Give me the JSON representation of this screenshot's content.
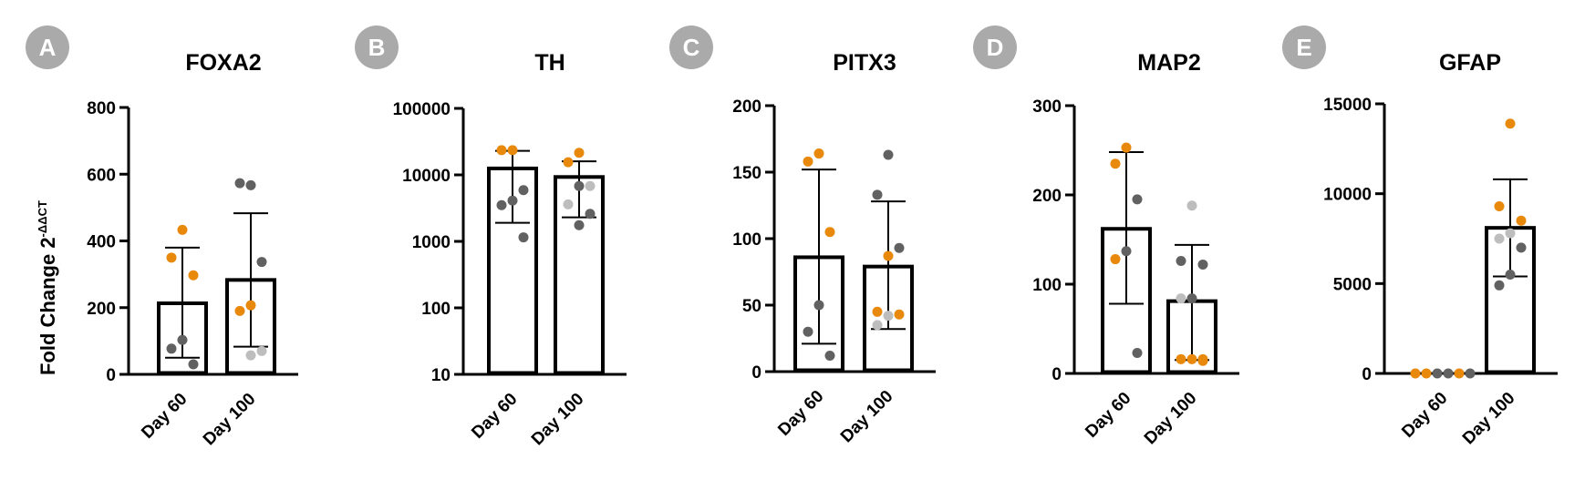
{
  "figure": {
    "ylabel": "Fold Change 2",
    "ylabel_sup": "-ΔΔCT"
  },
  "colors": {
    "bar": "#000000",
    "badge": "#aaaaaa",
    "dot_orange": "#e8890c",
    "dot_dark": "#616161",
    "dot_light": "#bdbdbd"
  },
  "chart_data": [
    {
      "panel": "A",
      "title": "FOXA2",
      "type": "bar",
      "scale": "linear",
      "ylim": [
        0,
        800
      ],
      "yticks": [
        0,
        200,
        400,
        600,
        800
      ],
      "ytick_labels": [
        "0",
        "200",
        "400",
        "600",
        "800"
      ],
      "categories": [
        "Day 60",
        "Day 100"
      ],
      "values": [
        213,
        283
      ],
      "error": [
        [
          50,
          380
        ],
        [
          83,
          483
        ]
      ],
      "points": [
        [
          {
            "y": 433,
            "c": "orange"
          },
          {
            "y": 350,
            "c": "orange"
          },
          {
            "y": 297,
            "c": "orange"
          },
          {
            "y": 103,
            "c": "dark"
          },
          {
            "y": 77,
            "c": "dark"
          },
          {
            "y": 30,
            "c": "dark"
          }
        ],
        [
          {
            "y": 567,
            "c": "dark"
          },
          {
            "y": 573,
            "c": "dark"
          },
          {
            "y": 337,
            "c": "dark"
          },
          {
            "y": 207,
            "c": "orange"
          },
          {
            "y": 190,
            "c": "orange"
          },
          {
            "y": 70,
            "c": "light"
          },
          {
            "y": 57,
            "c": "light"
          }
        ]
      ]
    },
    {
      "panel": "B",
      "title": "TH",
      "type": "bar",
      "scale": "log",
      "ylim": [
        10,
        100000
      ],
      "yticks": [
        10,
        100,
        1000,
        10000,
        100000
      ],
      "ytick_labels": [
        "10",
        "100",
        "1000",
        "10000",
        "100000"
      ],
      "categories": [
        "Day 60",
        "Day 100"
      ],
      "values": [
        12500,
        9300
      ],
      "error": [
        [
          1900,
          23000
        ],
        [
          2300,
          16000
        ]
      ],
      "points": [
        [
          {
            "y": 23500,
            "c": "orange"
          },
          {
            "y": 23500,
            "c": "orange"
          },
          {
            "y": 5900,
            "c": "dark"
          },
          {
            "y": 4100,
            "c": "dark"
          },
          {
            "y": 3500,
            "c": "dark"
          },
          {
            "y": 1150,
            "c": "dark"
          }
        ],
        [
          {
            "y": 21500,
            "c": "orange"
          },
          {
            "y": 15500,
            "c": "orange"
          },
          {
            "y": 6800,
            "c": "light"
          },
          {
            "y": 6800,
            "c": "dark"
          },
          {
            "y": 3600,
            "c": "light"
          },
          {
            "y": 2600,
            "c": "dark"
          },
          {
            "y": 1750,
            "c": "dark"
          }
        ]
      ]
    },
    {
      "panel": "C",
      "title": "PITX3",
      "type": "bar",
      "scale": "linear",
      "ylim": [
        0,
        200
      ],
      "yticks": [
        0,
        50,
        100,
        150,
        200
      ],
      "ytick_labels": [
        "0",
        "50",
        "100",
        "150",
        "200"
      ],
      "categories": [
        "Day 60",
        "Day 100"
      ],
      "values": [
        86,
        79
      ],
      "error": [
        [
          21,
          152
        ],
        [
          32,
          128
        ]
      ],
      "points": [
        [
          {
            "y": 164,
            "c": "orange"
          },
          {
            "y": 158,
            "c": "orange"
          },
          {
            "y": 105,
            "c": "orange"
          },
          {
            "y": 50,
            "c": "dark"
          },
          {
            "y": 30,
            "c": "dark"
          },
          {
            "y": 12,
            "c": "dark"
          }
        ],
        [
          {
            "y": 163,
            "c": "dark"
          },
          {
            "y": 133,
            "c": "dark"
          },
          {
            "y": 93,
            "c": "dark"
          },
          {
            "y": 87,
            "c": "orange"
          },
          {
            "y": 45,
            "c": "orange"
          },
          {
            "y": 43,
            "c": "orange"
          },
          {
            "y": 42,
            "c": "light"
          },
          {
            "y": 35,
            "c": "light"
          }
        ]
      ]
    },
    {
      "panel": "D",
      "title": "MAP2",
      "type": "bar",
      "scale": "linear",
      "ylim": [
        0,
        300
      ],
      "yticks": [
        0,
        100,
        200,
        300
      ],
      "ytick_labels": [
        "0",
        "100",
        "200",
        "300"
      ],
      "categories": [
        "Day 60",
        "Day 100"
      ],
      "values": [
        162,
        81
      ],
      "error": [
        [
          78,
          248
        ],
        [
          15,
          144
        ]
      ],
      "points": [
        [
          {
            "y": 253,
            "c": "orange"
          },
          {
            "y": 235,
            "c": "orange"
          },
          {
            "y": 195,
            "c": "dark"
          },
          {
            "y": 137,
            "c": "dark"
          },
          {
            "y": 128,
            "c": "orange"
          },
          {
            "y": 23,
            "c": "dark"
          }
        ],
        [
          {
            "y": 188,
            "c": "light"
          },
          {
            "y": 126,
            "c": "dark"
          },
          {
            "y": 122,
            "c": "dark"
          },
          {
            "y": 84,
            "c": "dark"
          },
          {
            "y": 84,
            "c": "light"
          },
          {
            "y": 16,
            "c": "orange"
          },
          {
            "y": 16,
            "c": "orange"
          },
          {
            "y": 16,
            "c": "orange"
          },
          {
            "y": 14,
            "c": "orange"
          }
        ]
      ]
    },
    {
      "panel": "E",
      "title": "GFAP",
      "type": "bar",
      "scale": "linear",
      "ylim": [
        0,
        15000
      ],
      "yticks": [
        0,
        5000,
        10000,
        15000
      ],
      "ytick_labels": [
        "0",
        "5000",
        "10000",
        "15000"
      ],
      "categories": [
        "Day 60",
        "Day 100"
      ],
      "values": [
        0,
        8100
      ],
      "error": [
        [
          0,
          0
        ],
        [
          5400,
          10800
        ]
      ],
      "points": [
        [
          {
            "y": 0,
            "c": "orange"
          },
          {
            "y": 0,
            "c": "orange"
          },
          {
            "y": 0,
            "c": "dark"
          },
          {
            "y": 0,
            "c": "dark"
          },
          {
            "y": 0,
            "c": "orange"
          },
          {
            "y": 0,
            "c": "dark"
          }
        ],
        [
          {
            "y": 13900,
            "c": "orange"
          },
          {
            "y": 9300,
            "c": "orange"
          },
          {
            "y": 8500,
            "c": "orange"
          },
          {
            "y": 7800,
            "c": "light"
          },
          {
            "y": 7500,
            "c": "light"
          },
          {
            "y": 7000,
            "c": "dark"
          },
          {
            "y": 5500,
            "c": "dark"
          },
          {
            "y": 4900,
            "c": "dark"
          }
        ]
      ]
    }
  ]
}
